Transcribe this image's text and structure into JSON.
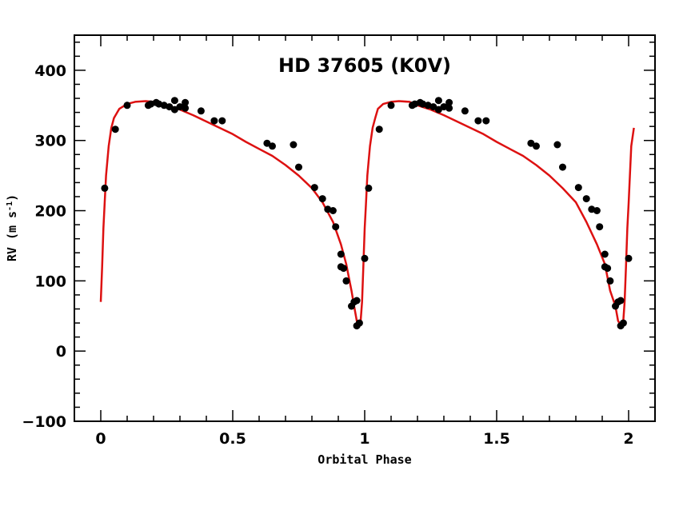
{
  "chart_data": {
    "type": "scatter",
    "title": "HD 37605 (K0V)",
    "xlabel": "Orbital Phase",
    "ylabel_main": "RV (m s",
    "ylabel_exp": "-1",
    "ylabel_close": ")",
    "xlim": [
      -0.1,
      2.1
    ],
    "ylim": [
      -100,
      450
    ],
    "x_ticks": [
      0,
      0.5,
      1,
      1.5,
      2
    ],
    "x_tick_labels": [
      "0",
      "0.5",
      "1",
      "1.5",
      "2"
    ],
    "y_ticks": [
      -100,
      0,
      100,
      200,
      300,
      400
    ],
    "y_tick_labels": [
      "−100",
      "0",
      "100",
      "200",
      "300",
      "400"
    ],
    "grid": false,
    "colors": {
      "points": "#000000",
      "model": "#dd1111"
    },
    "series": [
      {
        "kind": "points",
        "x": [
          0.015,
          0.055,
          0.1,
          0.18,
          0.19,
          0.21,
          0.22,
          0.24,
          0.26,
          0.28,
          0.28,
          0.3,
          0.32,
          0.32,
          0.38,
          0.43,
          0.46,
          0.63,
          0.65,
          0.73,
          0.75,
          0.81,
          0.84,
          0.86,
          0.88,
          0.89,
          0.91,
          0.91,
          0.92,
          0.93,
          0.95,
          0.96,
          0.97,
          0.97,
          0.98,
          1.0,
          1.015,
          1.055,
          1.1,
          1.18,
          1.19,
          1.21,
          1.22,
          1.24,
          1.26,
          1.28,
          1.28,
          1.3,
          1.32,
          1.32,
          1.38,
          1.43,
          1.46,
          1.63,
          1.65,
          1.73,
          1.75,
          1.81,
          1.84,
          1.86,
          1.88,
          1.89,
          1.91,
          1.91,
          1.92,
          1.93,
          1.95,
          1.96,
          1.97,
          1.97,
          1.98,
          2.0
        ],
        "y": [
          232,
          316,
          350,
          350,
          352,
          354,
          352,
          350,
          348,
          357,
          344,
          348,
          354,
          346,
          342,
          328,
          328,
          296,
          292,
          294,
          262,
          233,
          217,
          202,
          200,
          177,
          138,
          120,
          118,
          100,
          64,
          70,
          72,
          36,
          40,
          132,
          232,
          316,
          350,
          350,
          352,
          354,
          352,
          350,
          348,
          357,
          344,
          348,
          354,
          346,
          342,
          328,
          328,
          296,
          292,
          294,
          262,
          233,
          217,
          202,
          200,
          177,
          138,
          120,
          118,
          100,
          64,
          70,
          72,
          36,
          40,
          132
        ]
      },
      {
        "kind": "model",
        "x": [
          0.0,
          0.005,
          0.01,
          0.02,
          0.03,
          0.04,
          0.05,
          0.07,
          0.1,
          0.13,
          0.17,
          0.2,
          0.25,
          0.3,
          0.35,
          0.4,
          0.45,
          0.5,
          0.55,
          0.6,
          0.65,
          0.7,
          0.75,
          0.8,
          0.84,
          0.88,
          0.91,
          0.93,
          0.95,
          0.96,
          0.97,
          0.975,
          0.98,
          0.985,
          0.99,
          0.995,
          1.0,
          1.005,
          1.01,
          1.02,
          1.03,
          1.04,
          1.05,
          1.07,
          1.1,
          1.13,
          1.17,
          1.2,
          1.25,
          1.3,
          1.35,
          1.4,
          1.45,
          1.5,
          1.55,
          1.6,
          1.65,
          1.7,
          1.75,
          1.8,
          1.84,
          1.88,
          1.91,
          1.93,
          1.95,
          1.96,
          1.97,
          1.975,
          1.98,
          1.985,
          1.99,
          1.995,
          2.0,
          2.005,
          2.01,
          2.02
        ],
        "y": [
          70,
          120,
          175,
          250,
          292,
          318,
          332,
          345,
          352,
          355,
          356,
          355,
          350,
          344,
          336,
          327,
          318,
          309,
          298,
          288,
          278,
          265,
          250,
          232,
          212,
          184,
          152,
          124,
          86,
          64,
          43,
          37,
          35,
          44,
          70,
          120,
          175,
          210,
          250,
          292,
          318,
          332,
          345,
          352,
          355,
          356,
          355,
          350,
          344,
          336,
          327,
          318,
          309,
          298,
          288,
          278,
          265,
          250,
          232,
          212,
          184,
          152,
          124,
          86,
          64,
          43,
          37,
          35,
          44,
          70,
          120,
          175,
          210,
          250,
          292,
          318
        ]
      }
    ]
  }
}
